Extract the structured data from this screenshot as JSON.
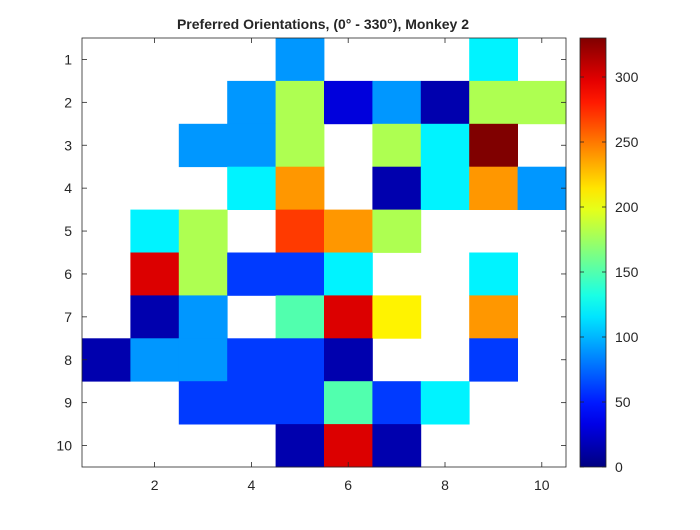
{
  "chart_data": {
    "type": "heatmap",
    "title": "Preferred Orientations, (0° - 330°), Monkey 2",
    "xlabel": "",
    "ylabel": "",
    "x_ticks": [
      2,
      4,
      6,
      8,
      10
    ],
    "y_ticks": [
      1,
      2,
      3,
      4,
      5,
      6,
      7,
      8,
      9,
      10
    ],
    "x_range": [
      0.5,
      10.5
    ],
    "y_range": [
      0.5,
      10.5
    ],
    "y_direction": "reverse",
    "colormap": "jet",
    "colorbar": {
      "limits": [
        0,
        330
      ],
      "ticks": [
        0,
        50,
        100,
        150,
        200,
        250,
        300
      ],
      "placement": "right"
    },
    "grid": false,
    "empty_cell_color": "#ffffff",
    "values": [
      [
        null,
        null,
        null,
        null,
        90,
        null,
        null,
        null,
        120,
        null
      ],
      [
        null,
        null,
        null,
        90,
        180,
        30,
        90,
        15,
        180,
        180
      ],
      [
        null,
        null,
        90,
        90,
        180,
        null,
        180,
        120,
        330,
        null
      ],
      [
        null,
        null,
        null,
        120,
        240,
        null,
        15,
        120,
        240,
        90
      ],
      [
        null,
        120,
        180,
        null,
        270,
        240,
        180,
        null,
        null,
        null
      ],
      [
        null,
        300,
        180,
        60,
        60,
        120,
        null,
        null,
        120,
        null
      ],
      [
        null,
        15,
        90,
        null,
        150,
        300,
        210,
        null,
        240,
        null
      ],
      [
        15,
        90,
        90,
        60,
        60,
        15,
        null,
        null,
        60,
        null
      ],
      [
        null,
        null,
        60,
        60,
        60,
        150,
        60,
        120,
        null,
        null
      ],
      [
        null,
        null,
        null,
        null,
        15,
        300,
        15,
        null,
        null,
        null
      ]
    ]
  }
}
